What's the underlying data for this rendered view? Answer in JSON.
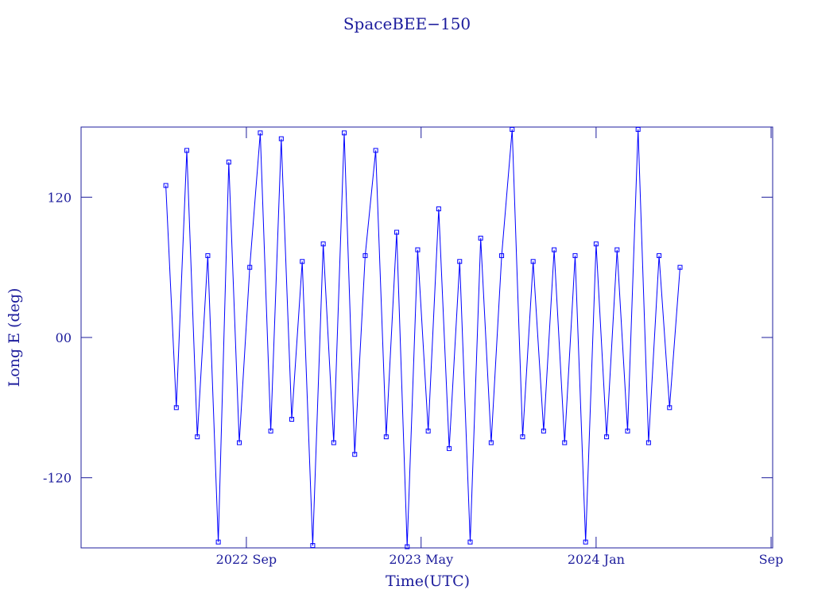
{
  "chart_data": {
    "type": "line",
    "title": "SpaceBEE−150",
    "x_label": "Time(UTC)",
    "y_label": "Long E (deg)",
    "x": [
      2022.36,
      2022.4,
      2022.44,
      2022.48,
      2022.52,
      2022.56,
      2022.6,
      2022.64,
      2022.68,
      2022.72,
      2022.76,
      2022.8,
      2022.84,
      2022.88,
      2022.92,
      2022.96,
      2023.0,
      2023.04,
      2023.08,
      2023.12,
      2023.16,
      2023.2,
      2023.24,
      2023.28,
      2023.32,
      2023.36,
      2023.4,
      2023.44,
      2023.48,
      2023.52,
      2023.56,
      2023.6,
      2023.64,
      2023.68,
      2023.72,
      2023.76,
      2023.8,
      2023.84,
      2023.88,
      2023.92,
      2023.96,
      2024.0,
      2024.04,
      2024.08,
      2024.12,
      2024.16,
      2024.2,
      2024.24,
      2024.28,
      2024.32
    ],
    "series": [
      {
        "name": "SpaceBEE−150",
        "color": "#0000ff",
        "values": [
          130,
          -60,
          160,
          -85,
          70,
          -175,
          150,
          -90,
          60,
          175,
          -80,
          170,
          -70,
          65,
          -178,
          80,
          -90,
          175,
          -100,
          70,
          160,
          -85,
          90,
          -179,
          75,
          -80,
          110,
          -95,
          65,
          -175,
          85,
          -90,
          70,
          178,
          -85,
          65,
          -80,
          75,
          -90,
          70,
          -175,
          80,
          -85,
          75,
          -80,
          178,
          -90,
          70,
          -60,
          60
        ]
      }
    ],
    "xlim": [
      2022.037,
      2024.673
    ],
    "xticks": [
      {
        "value": 2022.667,
        "label": "2022 Sep"
      },
      {
        "value": 2023.333,
        "label": "2023 May"
      },
      {
        "value": 2024.0,
        "label": "2024 Jan"
      },
      {
        "value": 2024.667,
        "label": "Sep"
      }
    ],
    "ylim": [
      -180,
      180
    ],
    "yticks": [
      120,
      {
        "value": 0,
        "label": "00"
      },
      -120
    ]
  }
}
